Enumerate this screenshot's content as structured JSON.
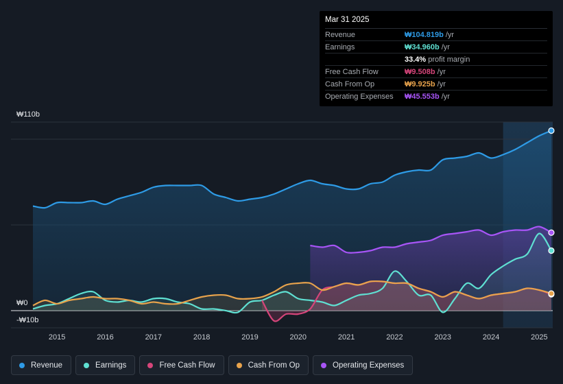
{
  "tooltip": {
    "date": "Mar 31 2025",
    "rows": [
      {
        "label": "Revenue",
        "value": "₩104.819b",
        "unit": "/yr",
        "color": "#2e9be6"
      },
      {
        "label": "Earnings",
        "value": "₩34.960b",
        "unit": "/yr",
        "color": "#5fe0d2"
      },
      {
        "label": "",
        "value": "33.4%",
        "unit": "profit margin",
        "color": "#ffffff"
      },
      {
        "label": "Free Cash Flow",
        "value": "₩9.508b",
        "unit": "/yr",
        "color": "#d6457a"
      },
      {
        "label": "Cash From Op",
        "value": "₩9.925b",
        "unit": "/yr",
        "color": "#e8a34c"
      },
      {
        "label": "Operating Expenses",
        "value": "₩45.553b",
        "unit": "/yr",
        "color": "#a855f7"
      }
    ]
  },
  "legend": [
    {
      "label": "Revenue",
      "color": "#2e9be6"
    },
    {
      "label": "Earnings",
      "color": "#5fe0d2"
    },
    {
      "label": "Free Cash Flow",
      "color": "#d6457a"
    },
    {
      "label": "Cash From Op",
      "color": "#e8a34c"
    },
    {
      "label": "Operating Expenses",
      "color": "#a855f7"
    }
  ],
  "chart_data": {
    "type": "area",
    "title": "",
    "xlabel": "",
    "ylabel": "",
    "y_top_label": "₩110b",
    "y_zero_label": "₩0",
    "y_bottom_label": "-₩10b",
    "ylim": [
      -10,
      110
    ],
    "xlim": [
      2014.5,
      2025.25
    ],
    "x_ticks": [
      "2015",
      "2016",
      "2017",
      "2018",
      "2019",
      "2020",
      "2021",
      "2022",
      "2023",
      "2024",
      "2025"
    ],
    "series": [
      {
        "name": "Revenue",
        "color": "#2e9be6",
        "x": [
          2014.5,
          2014.75,
          2015.0,
          2015.25,
          2015.5,
          2015.75,
          2016.0,
          2016.25,
          2016.5,
          2016.75,
          2017.0,
          2017.25,
          2017.5,
          2017.75,
          2018.0,
          2018.25,
          2018.5,
          2018.75,
          2019.0,
          2019.25,
          2019.5,
          2019.75,
          2020.0,
          2020.25,
          2020.5,
          2020.75,
          2021.0,
          2021.25,
          2021.5,
          2021.75,
          2022.0,
          2022.25,
          2022.5,
          2022.75,
          2023.0,
          2023.25,
          2023.5,
          2023.75,
          2024.0,
          2024.25,
          2024.5,
          2024.75,
          2025.0,
          2025.25
        ],
        "values": [
          61,
          60,
          63,
          63,
          63,
          64,
          62,
          65,
          67,
          69,
          72,
          73,
          73,
          73,
          73,
          68,
          66,
          64,
          65,
          66,
          68,
          71,
          74,
          76,
          74,
          73,
          71,
          71,
          74,
          75,
          79,
          81,
          82,
          82,
          88,
          89,
          90,
          92,
          89,
          91,
          94,
          98,
          102,
          105
        ]
      },
      {
        "name": "Earnings",
        "color": "#5fe0d2",
        "x": [
          2014.5,
          2014.75,
          2015.0,
          2015.25,
          2015.5,
          2015.75,
          2016.0,
          2016.25,
          2016.5,
          2016.75,
          2017.0,
          2017.25,
          2017.5,
          2017.75,
          2018.0,
          2018.25,
          2018.5,
          2018.75,
          2019.0,
          2019.25,
          2019.5,
          2019.75,
          2020.0,
          2020.25,
          2020.5,
          2020.75,
          2021.0,
          2021.25,
          2021.5,
          2021.75,
          2022.0,
          2022.25,
          2022.5,
          2022.75,
          2023.0,
          2023.25,
          2023.5,
          2023.75,
          2024.0,
          2024.25,
          2024.5,
          2024.75,
          2025.0,
          2025.25
        ],
        "values": [
          1,
          3,
          4,
          7,
          10,
          11,
          6,
          5,
          6,
          5,
          7,
          7,
          5,
          4,
          1,
          1,
          0,
          -1,
          5,
          6,
          9,
          11,
          7,
          6,
          5,
          3,
          6,
          9,
          10,
          13,
          23,
          17,
          9,
          9,
          -1,
          7,
          16,
          13,
          21,
          26,
          30,
          33,
          45,
          35
        ]
      },
      {
        "name": "Free Cash Flow",
        "color": "#d6457a",
        "x": [
          2019.25,
          2019.5,
          2019.75,
          2020.0,
          2020.25,
          2020.5,
          2020.75,
          2021.0,
          2021.25,
          2021.5,
          2021.75,
          2022.0,
          2022.25,
          2022.5,
          2022.75,
          2023.0,
          2023.25,
          2023.5,
          2023.75,
          2024.0,
          2024.25,
          2024.5,
          2024.75,
          2025.0,
          2025.25
        ],
        "values": [
          6,
          -6,
          -2,
          -2,
          1,
          12,
          14,
          16,
          15,
          17,
          17,
          16,
          16,
          13,
          11,
          8,
          11,
          9,
          7,
          9,
          10,
          11,
          13,
          12,
          9.5
        ]
      },
      {
        "name": "Cash From Op",
        "color": "#e8a34c",
        "x": [
          2014.5,
          2014.75,
          2015.0,
          2015.25,
          2015.5,
          2015.75,
          2016.0,
          2016.25,
          2016.5,
          2016.75,
          2017.0,
          2017.25,
          2017.5,
          2017.75,
          2018.0,
          2018.25,
          2018.5,
          2018.75,
          2019.0,
          2019.25,
          2019.5,
          2019.75,
          2020.0,
          2020.25,
          2020.5,
          2020.75,
          2021.0,
          2021.25,
          2021.5,
          2021.75,
          2022.0,
          2022.25,
          2022.5,
          2022.75,
          2023.0,
          2023.25,
          2023.5,
          2023.75,
          2024.0,
          2024.25,
          2024.5,
          2024.75,
          2025.0,
          2025.25
        ],
        "values": [
          3,
          6,
          4,
          6,
          7,
          8,
          7,
          7,
          6,
          4,
          5,
          4,
          4,
          6,
          8,
          9,
          9,
          7,
          7,
          8,
          11,
          15,
          16,
          16,
          12,
          14,
          16,
          15,
          17,
          17,
          16,
          16,
          13,
          11,
          8,
          11,
          9,
          7,
          9,
          10,
          11,
          13,
          12,
          10
        ]
      },
      {
        "name": "Operating Expenses",
        "color": "#a855f7",
        "x": [
          2020.25,
          2020.5,
          2020.75,
          2021.0,
          2021.25,
          2021.5,
          2021.75,
          2022.0,
          2022.25,
          2022.5,
          2022.75,
          2023.0,
          2023.25,
          2023.5,
          2023.75,
          2024.0,
          2024.25,
          2024.5,
          2024.75,
          2025.0,
          2025.25
        ],
        "values": [
          38,
          37,
          38,
          34,
          34,
          35,
          37,
          37,
          39,
          40,
          41,
          44,
          45,
          46,
          47,
          44,
          46,
          47,
          47,
          49,
          45.5
        ]
      }
    ]
  }
}
